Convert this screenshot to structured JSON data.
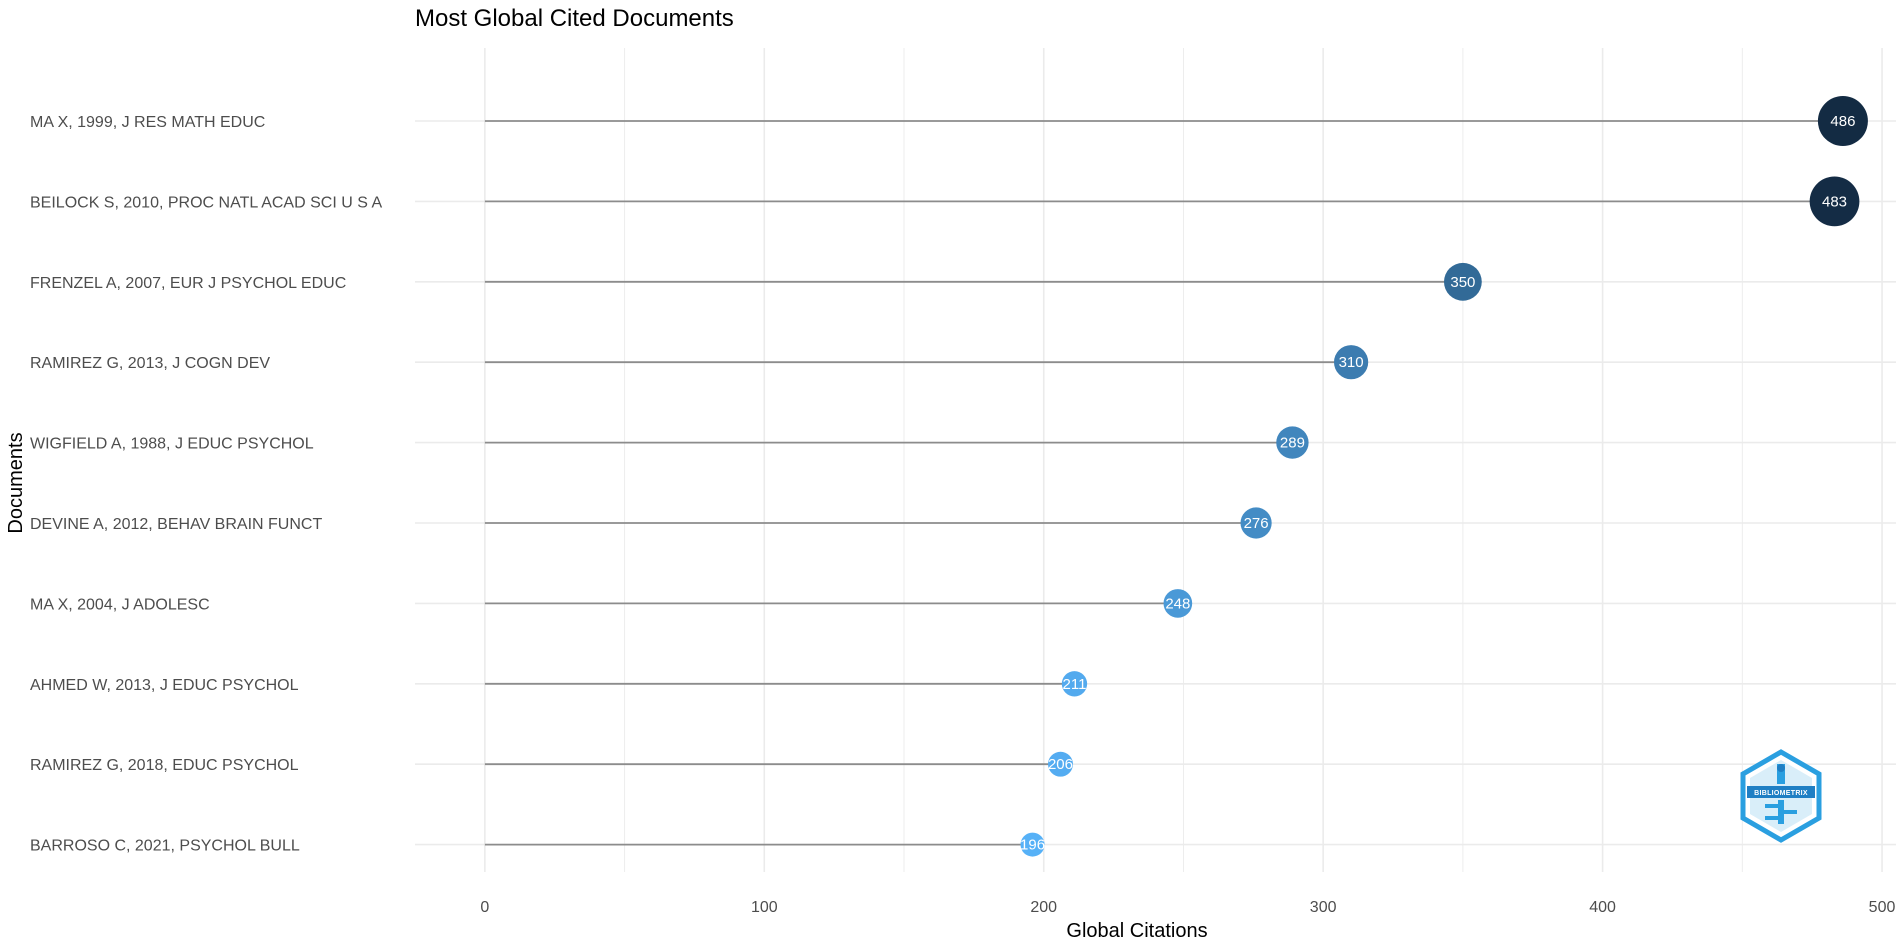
{
  "chart_data": {
    "type": "scatter",
    "style": "lollipop",
    "title": "Most Global Cited Documents",
    "xlabel": "Global Citations",
    "ylabel": "Documents",
    "xlim": [
      -25,
      505
    ],
    "xticks": [
      0,
      100,
      200,
      300,
      400,
      500
    ],
    "grid": true,
    "legend": "none",
    "documents": [
      {
        "label": "MA X, 1999, J RES MATH EDUC",
        "value": 486
      },
      {
        "label": "BEILOCK S, 2010, PROC NATL ACAD SCI U S A",
        "value": 483
      },
      {
        "label": "FRENZEL A, 2007, EUR J PSYCHOL EDUC",
        "value": 350
      },
      {
        "label": "RAMIREZ G, 2013, J COGN DEV",
        "value": 310
      },
      {
        "label": "WIGFIELD A, 1988, J EDUC PSYCHOL",
        "value": 289
      },
      {
        "label": "DEVINE A, 2012, BEHAV BRAIN FUNCT",
        "value": 276
      },
      {
        "label": "MA X, 2004, J ADOLESC",
        "value": 248
      },
      {
        "label": "AHMED W, 2013, J EDUC PSYCHOL",
        "value": 211
      },
      {
        "label": "RAMIREZ G, 2018, EDUC PSYCHOL",
        "value": 206
      },
      {
        "label": "BARROSO C, 2021, PSYCHOL BULL",
        "value": 196
      }
    ],
    "colors": {
      "high": "#132b43",
      "low": "#56b1f7",
      "stem": "#8c8c8c",
      "grid": "#ebebeb"
    }
  },
  "logo": {
    "text": "BIBLIOMETRIX",
    "icon": "bibliometrix-logo-icon",
    "color": "#2a9fe0"
  }
}
